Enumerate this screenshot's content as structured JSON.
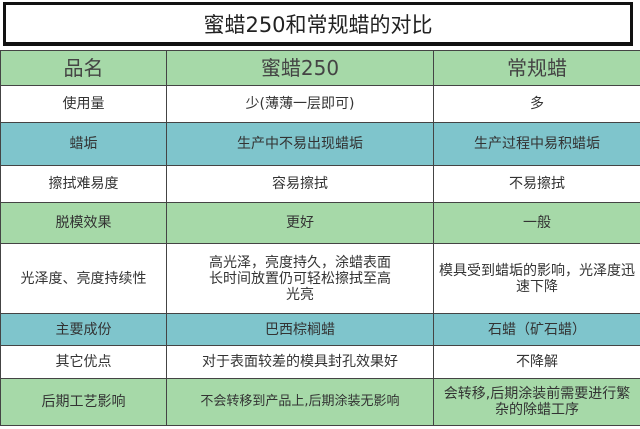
{
  "title": "蜜蜡250和常规蜡的对比",
  "colors": {
    "green": "#a6d9a8",
    "teal": "#7fc5cc",
    "white": "#ffffff"
  },
  "header": [
    "品名",
    "蜜蜡250",
    "常规蜡"
  ],
  "rows": [
    {
      "cells": [
        "使用量",
        "少(薄薄一层即可)",
        "多"
      ]
    },
    {
      "cells": [
        "蜡垢",
        "生产中不易出现蜡垢",
        "生产过程中易积蜡垢"
      ]
    },
    {
      "cells": [
        "擦拭难易度",
        "容易擦拭",
        "不易擦拭"
      ]
    },
    {
      "cells": [
        "脱模效果",
        "更好",
        "一般"
      ]
    },
    {
      "cells": [
        "光泽度、亮度持续性",
        "高光泽，亮度持久，涂蜡表面长时间放置仍可轻松擦拭至高光亮",
        "模具受到蜡垢的影响，光泽度迅速下降"
      ]
    },
    {
      "cells": [
        "主要成份",
        "巴西棕榈蜡",
        "石蜡（矿石蜡）"
      ]
    },
    {
      "cells": [
        "其它优点",
        "对于表面较差的模具封孔效果好",
        "不降解"
      ]
    },
    {
      "cells": [
        "后期工艺影响",
        "不会转移到产品上,后期涂装无影响",
        "会转移,后期涂装前需要进行繁杂的除蜡工序"
      ]
    }
  ]
}
